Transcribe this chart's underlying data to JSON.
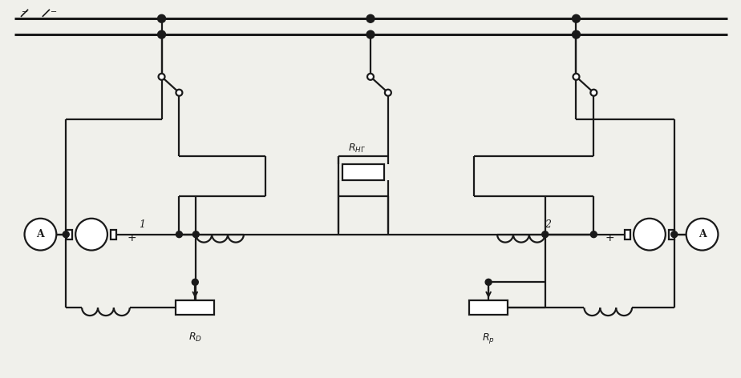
{
  "bg_color": "#f0f0eb",
  "line_color": "#1a1a1a",
  "lw": 1.6,
  "fig_width": 9.24,
  "fig_height": 4.72
}
